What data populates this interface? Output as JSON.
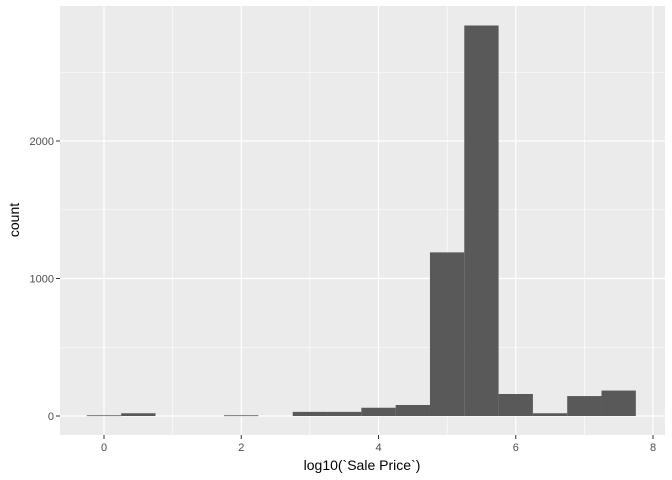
{
  "colors": {
    "panel_background": "#ebebeb",
    "grid_major": "#ffffff",
    "bar_fill": "#595959",
    "tick_color": "#333333"
  },
  "chart_data": {
    "type": "bar",
    "title": "",
    "xlabel": "log10(`Sale Price`)",
    "ylabel": "count",
    "xlim": [
      -0.25,
      7.75
    ],
    "ylim": [
      0,
      2840
    ],
    "x_ticks": [
      0,
      2,
      4,
      6,
      8
    ],
    "x_tick_labels": [
      "0",
      "2",
      "4",
      "6",
      "8"
    ],
    "y_ticks": [
      0,
      1000,
      2000
    ],
    "y_tick_labels": [
      "0",
      "1000",
      "2000"
    ],
    "bin_width": 0.5,
    "bins": [
      {
        "x_min": -0.25,
        "x_max": 0.25,
        "count": 5
      },
      {
        "x_min": 0.25,
        "x_max": 0.75,
        "count": 20
      },
      {
        "x_min": 0.75,
        "x_max": 1.25,
        "count": 0
      },
      {
        "x_min": 1.25,
        "x_max": 1.75,
        "count": 0
      },
      {
        "x_min": 1.75,
        "x_max": 2.25,
        "count": 5
      },
      {
        "x_min": 2.25,
        "x_max": 2.75,
        "count": 0
      },
      {
        "x_min": 2.75,
        "x_max": 3.25,
        "count": 30
      },
      {
        "x_min": 3.25,
        "x_max": 3.75,
        "count": 30
      },
      {
        "x_min": 3.75,
        "x_max": 4.25,
        "count": 60
      },
      {
        "x_min": 4.25,
        "x_max": 4.75,
        "count": 80
      },
      {
        "x_min": 4.75,
        "x_max": 5.25,
        "count": 1190
      },
      {
        "x_min": 5.25,
        "x_max": 5.75,
        "count": 2840
      },
      {
        "x_min": 5.75,
        "x_max": 6.25,
        "count": 160
      },
      {
        "x_min": 6.25,
        "x_max": 6.75,
        "count": 20
      },
      {
        "x_min": 6.75,
        "x_max": 7.25,
        "count": 145
      },
      {
        "x_min": 7.25,
        "x_max": 7.75,
        "count": 185
      }
    ],
    "grid": true,
    "legend": "none"
  }
}
